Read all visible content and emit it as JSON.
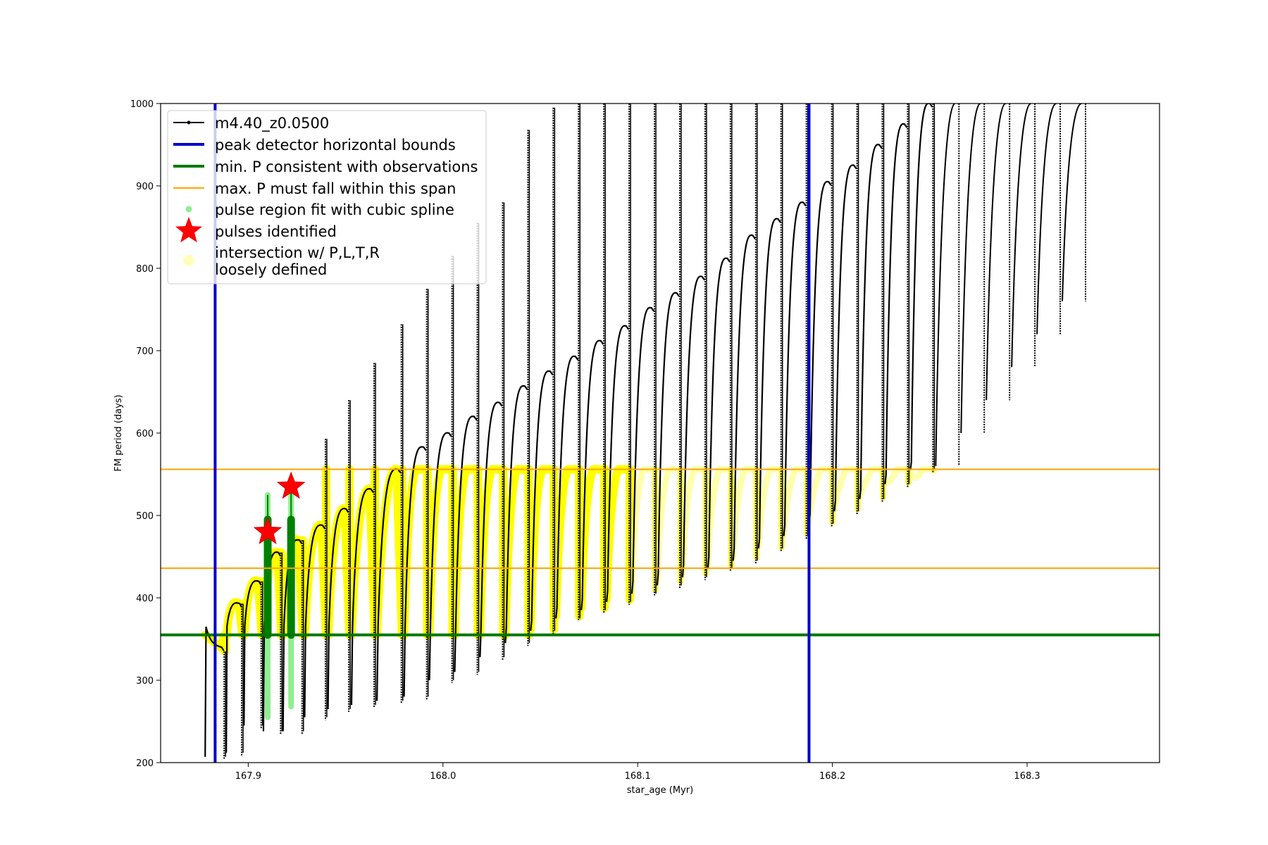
{
  "chart_data": {
    "type": "line",
    "xlabel": "star_age (Myr)",
    "ylabel": "FM period (days)",
    "xlim": [
      167.855,
      168.368
    ],
    "ylim": [
      200,
      1000
    ],
    "x_ticks": [
      167.9,
      168.0,
      168.1,
      168.2,
      168.3
    ],
    "x_tick_labels": [
      "167.9",
      "168.0",
      "168.1",
      "168.2",
      "168.3"
    ],
    "y_ticks": [
      200,
      300,
      400,
      500,
      600,
      700,
      800,
      900,
      1000
    ],
    "y_tick_labels": [
      "200",
      "300",
      "400",
      "500",
      "600",
      "700",
      "800",
      "900",
      "1000"
    ],
    "grid": false,
    "legend_position": "top-left",
    "legend": [
      {
        "label": "m4.40_z0.0500",
        "style": "line-marker",
        "color": "#000000"
      },
      {
        "label": "peak detector horizontal bounds",
        "style": "line",
        "color": "#0000cc"
      },
      {
        "label": "min. P consistent with observations",
        "style": "line",
        "color": "#007700"
      },
      {
        "label": "max. P must fall within this span",
        "style": "line-thin",
        "color": "#ffa500"
      },
      {
        "label": "pulse region fit with cubic spline",
        "style": "dot",
        "color": "#90ee90"
      },
      {
        "label": "pulses identified",
        "style": "star",
        "color": "#ff0000"
      },
      {
        "label": "intersection w/ P,L,T,R\nloosely defined",
        "style": "big-dot",
        "color": "#ffffaa"
      }
    ],
    "vertical_bounds": [
      167.883,
      168.188
    ],
    "min_period": 355,
    "max_period_span": [
      436,
      556
    ],
    "pulses_identified": [
      {
        "x": 167.91,
        "y": 480
      },
      {
        "x": 167.922,
        "y": 535
      }
    ],
    "pulse_regions": [
      {
        "x": 167.91,
        "y_low": 255,
        "y_high": 525
      },
      {
        "x": 167.922,
        "y_low": 268,
        "y_high": 530
      }
    ],
    "series_pulses": [
      {
        "x_start": 167.877,
        "x_end": 167.888,
        "min": 207,
        "max": 335,
        "top": 340,
        "floor": 355,
        "type": "arch"
      },
      {
        "x_start": 167.888,
        "x_end": 167.897,
        "min": 212,
        "max": 393,
        "top": 393,
        "floor": 355,
        "type": "arch"
      },
      {
        "x_start": 167.897,
        "x_end": 167.907,
        "min": 245,
        "max": 420,
        "top": 420,
        "floor": 355,
        "type": "arch"
      },
      {
        "x_start": 167.907,
        "x_end": 167.917,
        "min": 238,
        "max": 455,
        "top": 455,
        "floor": 355,
        "type": "arch"
      },
      {
        "x_start": 167.917,
        "x_end": 167.928,
        "min": 238,
        "max": 470,
        "top": 470,
        "floor": 355,
        "type": "arch"
      },
      {
        "x_start": 167.928,
        "x_end": 167.94,
        "min": 255,
        "max": 593,
        "top": 488,
        "floor": 355,
        "type": "arch"
      },
      {
        "x_start": 167.94,
        "x_end": 167.952,
        "min": 265,
        "max": 640,
        "top": 508,
        "floor": 355,
        "type": "arch"
      },
      {
        "x_start": 167.952,
        "x_end": 167.965,
        "min": 270,
        "max": 685,
        "top": 532,
        "floor": 355,
        "type": "arch"
      },
      {
        "x_start": 167.965,
        "x_end": 167.979,
        "min": 275,
        "max": 732,
        "top": 556,
        "floor": 355,
        "type": "arch"
      },
      {
        "x_start": 167.979,
        "x_end": 167.992,
        "min": 280,
        "max": 775,
        "top": 583,
        "floor": 355,
        "type": "arch"
      },
      {
        "x_start": 167.992,
        "x_end": 168.005,
        "min": 300,
        "max": 815,
        "top": 600,
        "floor": 355,
        "type": "arch"
      },
      {
        "x_start": 168.005,
        "x_end": 168.018,
        "min": 310,
        "max": 855,
        "top": 620,
        "floor": 355,
        "type": "arch"
      },
      {
        "x_start": 168.018,
        "x_end": 168.031,
        "min": 328,
        "max": 880,
        "top": 637,
        "floor": 355,
        "type": "arch"
      },
      {
        "x_start": 168.031,
        "x_end": 168.044,
        "min": 345,
        "max": 968,
        "top": 657,
        "floor": 355,
        "type": "arch"
      },
      {
        "x_start": 168.044,
        "x_end": 168.057,
        "min": 360,
        "max": 995,
        "top": 675,
        "floor": 362,
        "type": "arch"
      },
      {
        "x_start": 168.057,
        "x_end": 168.07,
        "min": 375,
        "max": 1000,
        "top": 693,
        "floor": 378,
        "type": "arch"
      },
      {
        "x_start": 168.07,
        "x_end": 168.083,
        "min": 385,
        "max": 1000,
        "top": 712,
        "floor": 388,
        "type": "arch"
      },
      {
        "x_start": 168.083,
        "x_end": 168.096,
        "min": 395,
        "max": 1000,
        "top": 730,
        "floor": 398,
        "type": "arch"
      },
      {
        "x_start": 168.096,
        "x_end": 168.109,
        "min": 405,
        "max": 1000,
        "top": 752,
        "floor": 410,
        "type": "arch"
      },
      {
        "x_start": 168.109,
        "x_end": 168.122,
        "min": 415,
        "max": 1000,
        "top": 770,
        "floor": 420,
        "type": "arch"
      },
      {
        "x_start": 168.122,
        "x_end": 168.135,
        "min": 425,
        "max": 1000,
        "top": 790,
        "floor": 430,
        "type": "arch"
      },
      {
        "x_start": 168.135,
        "x_end": 168.148,
        "min": 435,
        "max": 1000,
        "top": 812,
        "floor": 440,
        "type": "arch"
      },
      {
        "x_start": 168.148,
        "x_end": 168.161,
        "min": 445,
        "max": 1000,
        "top": 840,
        "floor": 450,
        "type": "arch"
      },
      {
        "x_start": 168.161,
        "x_end": 168.174,
        "min": 460,
        "max": 1000,
        "top": 860,
        "floor": 462,
        "type": "arch"
      },
      {
        "x_start": 168.174,
        "x_end": 168.187,
        "min": 475,
        "max": 1000,
        "top": 880,
        "floor": 478,
        "type": "arch"
      },
      {
        "x_start": 168.187,
        "x_end": 168.2,
        "min": 490,
        "max": 1000,
        "top": 905,
        "floor": 492,
        "type": "arch"
      },
      {
        "x_start": 168.2,
        "x_end": 168.213,
        "min": 505,
        "max": 1000,
        "top": 925,
        "floor": 508,
        "type": "arch"
      },
      {
        "x_start": 168.213,
        "x_end": 168.226,
        "min": 520,
        "max": 1000,
        "top": 950,
        "floor": 522,
        "type": "arch"
      },
      {
        "x_start": 168.226,
        "x_end": 168.239,
        "min": 538,
        "max": 1000,
        "top": 975,
        "floor": 540,
        "type": "arch"
      },
      {
        "x_start": 168.239,
        "x_end": 168.252,
        "min": 555,
        "max": 1000,
        "top": 1000,
        "floor": 555,
        "type": "arch"
      }
    ]
  }
}
